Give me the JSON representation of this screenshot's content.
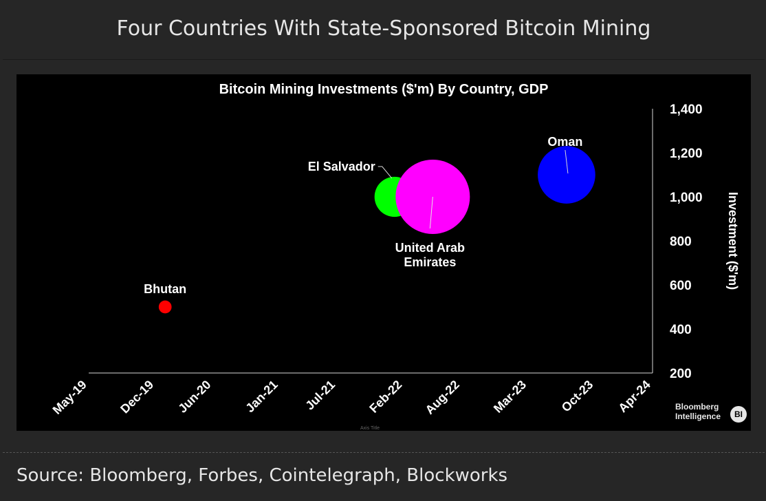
{
  "page": {
    "title": "Four Countries With State-Sponsored Bitcoin Mining",
    "source": "Source: Bloomberg, Forbes, Cointelegraph, Blockworks"
  },
  "logo": {
    "line1": "Bloomberg",
    "line2": "Intelligence",
    "badge": "BI"
  },
  "chart_data": {
    "type": "scatter",
    "title": "Bitcoin Mining Investments ($'m) By Country, GDP",
    "xlabel": "Axis Title",
    "ylabel": "Investment ($'m)",
    "x_ticks": [
      "May-19",
      "Dec-19",
      "Jun-20",
      "Jan-21",
      "Jul-21",
      "Feb-22",
      "Aug-22",
      "Mar-23",
      "Oct-23",
      "Apr-24"
    ],
    "y_ticks": [
      "200",
      "400",
      "600",
      "800",
      "1,000",
      "1,200",
      "1,400"
    ],
    "ylim": [
      200,
      1400
    ],
    "y_axis_side": "right",
    "bubble_size_meaning": "GDP",
    "points": [
      {
        "name": "Bhutan",
        "x": "Jan-20",
        "y": 500,
        "size": 3,
        "color": "#ff0000"
      },
      {
        "name": "El Salvador",
        "x": "Jan-22",
        "y": 1000,
        "size": 29,
        "color": "#00ff00"
      },
      {
        "name": "United Arab Emirates",
        "x": "May-22",
        "y": 1000,
        "size": 100,
        "color": "#ff00ff"
      },
      {
        "name": "Oman",
        "x": "Jul-23",
        "y": 1100,
        "size": 60,
        "color": "#0000ff"
      }
    ]
  }
}
